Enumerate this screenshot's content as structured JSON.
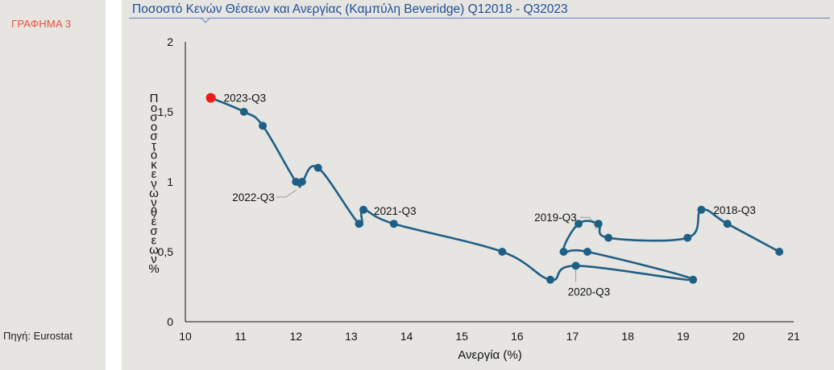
{
  "figure_label": "ΓΡΑΦΗΜΑ 3",
  "source": "Πηγή: Eurostat",
  "chart_data": {
    "type": "scatter",
    "title": "Ποσοστό Κενών Θέσεων και Ανεργίας (Καμπύλη Beveridge) Q12018 - Q32023",
    "xlabel": "Ανεργία (%)",
    "ylabel": "Ποσοστό κενών θέσεων %",
    "xlim": [
      10,
      21
    ],
    "ylim": [
      0,
      2
    ],
    "xticks": [
      "10",
      "11",
      "12",
      "13",
      "14",
      "15",
      "16",
      "17",
      "18",
      "19",
      "20",
      "21"
    ],
    "yticks": [
      "0",
      "0,5",
      "1",
      "1,5",
      "2"
    ],
    "grid": false,
    "legend": "none",
    "line_color": "#1f5f86",
    "highlight_color": "#ee1c1c",
    "series": [
      {
        "x": [
          20.74,
          19.8,
          19.33,
          19.08,
          17.65,
          17.47,
          17.11,
          16.84,
          17.27,
          19.18,
          17.06,
          16.6,
          15.73,
          13.77,
          13.22,
          13.14,
          12.4,
          12.11,
          12.0,
          11.4,
          11.06,
          10.46
        ],
        "y": [
          0.5,
          0.7,
          0.8,
          0.6,
          0.6,
          0.7,
          0.7,
          0.5,
          0.5,
          0.3,
          0.4,
          0.3,
          0.5,
          0.7,
          0.8,
          0.7,
          1.1,
          1.0,
          1.0,
          1.4,
          1.5,
          1.6
        ]
      }
    ],
    "annotations": [
      {
        "label": "2018-Q3",
        "x": 19.33,
        "y": 0.8
      },
      {
        "label": "2019-Q3",
        "x": 17.47,
        "y": 0.7
      },
      {
        "label": "2020-Q3",
        "x": 17.06,
        "y": 0.4
      },
      {
        "label": "2021-Q3",
        "x": 13.22,
        "y": 0.8
      },
      {
        "label": "2022-Q3",
        "x": 12.11,
        "y": 1.0
      },
      {
        "label": "2023-Q3",
        "x": 10.46,
        "y": 1.6
      }
    ]
  }
}
